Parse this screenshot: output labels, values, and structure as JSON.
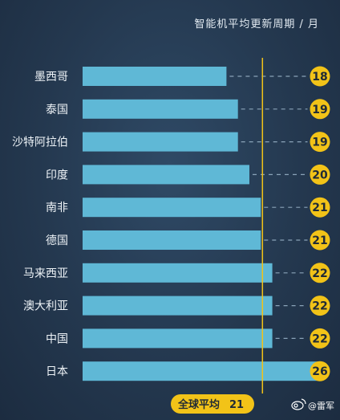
{
  "chart_data": {
    "type": "bar",
    "orientation": "horizontal",
    "title": "智能机平均更新周期 / 月",
    "categories": [
      "墨西哥",
      "泰国",
      "沙特阿拉伯",
      "印度",
      "南非",
      "德国",
      "马来西亚",
      "澳大利亚",
      "中国",
      "日本"
    ],
    "values": [
      18,
      19,
      19,
      20,
      21,
      21,
      22,
      22,
      22,
      26
    ],
    "reference_line": {
      "label": "全球平均",
      "value": 21
    },
    "grid": false,
    "colors": {
      "bar": "#5fb8d6",
      "value_badge": "#f2c318",
      "reference_line": "#f2c318",
      "background": "#24384f"
    }
  },
  "watermark": {
    "text": "@雷军",
    "icon": "weibo-icon"
  }
}
